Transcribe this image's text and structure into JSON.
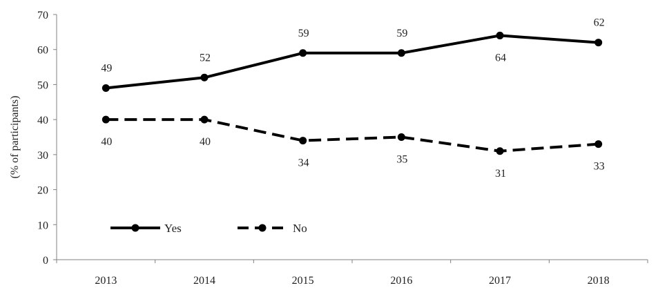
{
  "chart_data": {
    "type": "line",
    "title": "",
    "xlabel": "",
    "ylabel": "(% of participants)",
    "x": [
      "2013",
      "2014",
      "2015",
      "2016",
      "2017",
      "2018"
    ],
    "ylim": [
      0,
      70
    ],
    "yticks": [
      0,
      10,
      20,
      30,
      40,
      50,
      60,
      70
    ],
    "grid": false,
    "legend": "bottom-left",
    "series": [
      {
        "name": "Yes",
        "values": [
          49,
          52,
          59,
          59,
          64,
          62
        ],
        "color": "#000000",
        "style": "solid",
        "labels": [
          "49",
          "52",
          "59",
          "59",
          "64",
          "62"
        ],
        "label_side": [
          "above",
          "above",
          "above",
          "above",
          "below",
          "above"
        ]
      },
      {
        "name": "No",
        "values": [
          40,
          40,
          34,
          35,
          31,
          33
        ],
        "color": "#000000",
        "style": "dashed",
        "labels": [
          "40",
          "40",
          "34",
          "35",
          "31",
          "33"
        ],
        "label_side": [
          "below",
          "below",
          "below",
          "below",
          "below",
          "below"
        ]
      }
    ]
  }
}
